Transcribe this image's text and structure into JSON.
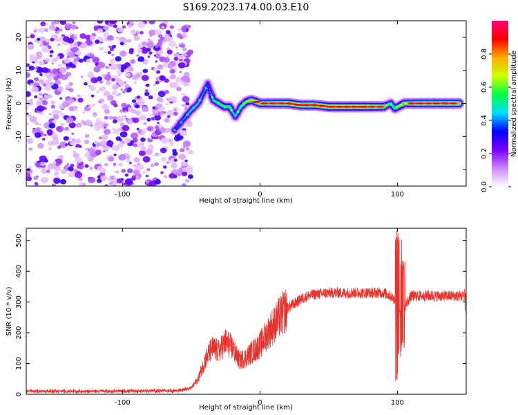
{
  "title": "S169.2023.174.00.03.E10",
  "chart_data": [
    {
      "type": "heatmap",
      "xlabel": "Height of straight line (km)",
      "ylabel": "Frequency (Hz)",
      "xlim": [
        -170,
        150
      ],
      "ylim": [
        -25,
        25
      ],
      "xticks": [
        -100,
        0,
        100
      ],
      "yticks": [
        -20,
        -10,
        0,
        10,
        20
      ],
      "colorbar": {
        "label": "Normalized spectral amplitude",
        "range": [
          0,
          1
        ],
        "ticks": [
          0.0,
          0.2,
          0.4,
          0.6,
          0.8
        ],
        "colors": [
          "#ffffff",
          "#cc88ff",
          "#7a00ff",
          "#0000ff",
          "#00ddff",
          "#00ff44",
          "#ccff00",
          "#ffaa00",
          "#ff0000",
          "#ff0077"
        ]
      },
      "noise_region": {
        "x_from": -170,
        "x_to": -50,
        "amplitude": 0.2
      },
      "ridge": [
        {
          "x": -62,
          "y": -8,
          "a": 0.35
        },
        {
          "x": -56,
          "y": -5,
          "a": 0.4
        },
        {
          "x": -50,
          "y": -2,
          "a": 0.45
        },
        {
          "x": -45,
          "y": 0,
          "a": 0.45
        },
        {
          "x": -40,
          "y": 4,
          "a": 0.4
        },
        {
          "x": -38,
          "y": 6,
          "a": 0.35
        },
        {
          "x": -34,
          "y": 1,
          "a": 0.5
        },
        {
          "x": -30,
          "y": 0,
          "a": 0.55
        },
        {
          "x": -26,
          "y": -1,
          "a": 0.55
        },
        {
          "x": -22,
          "y": -1,
          "a": 0.55
        },
        {
          "x": -18,
          "y": -4,
          "a": 0.45
        },
        {
          "x": -14,
          "y": -1,
          "a": 0.55
        },
        {
          "x": -10,
          "y": 0.5,
          "a": 0.6
        },
        {
          "x": -6,
          "y": 1,
          "a": 0.7
        },
        {
          "x": 0,
          "y": 0,
          "a": 0.75
        },
        {
          "x": 10,
          "y": 0,
          "a": 0.8
        },
        {
          "x": 20,
          "y": 0,
          "a": 0.85
        },
        {
          "x": 30,
          "y": -0.5,
          "a": 0.85
        },
        {
          "x": 40,
          "y": -0.5,
          "a": 0.85
        },
        {
          "x": 50,
          "y": -1,
          "a": 0.85
        },
        {
          "x": 60,
          "y": -1,
          "a": 0.85
        },
        {
          "x": 70,
          "y": -1,
          "a": 0.85
        },
        {
          "x": 80,
          "y": -1,
          "a": 0.8
        },
        {
          "x": 90,
          "y": -1,
          "a": 0.75
        },
        {
          "x": 95,
          "y": 0,
          "a": 0.5
        },
        {
          "x": 98,
          "y": -1.5,
          "a": 0.55
        },
        {
          "x": 105,
          "y": 0,
          "a": 0.7
        },
        {
          "x": 115,
          "y": 0,
          "a": 0.8
        },
        {
          "x": 125,
          "y": 0,
          "a": 0.8
        },
        {
          "x": 135,
          "y": 0,
          "a": 0.8
        },
        {
          "x": 145,
          "y": 0,
          "a": 0.8
        }
      ]
    },
    {
      "type": "line",
      "xlabel": "Height of straight line (km)",
      "ylabel": "SNR (10 * v/v)",
      "xlim": [
        -170,
        150
      ],
      "ylim": [
        0,
        540
      ],
      "xticks": [
        -100,
        0,
        100
      ],
      "yticks": [
        0,
        100,
        200,
        300,
        400,
        500
      ],
      "color": "#e8322e",
      "envelope_x": [
        -170,
        -150,
        -100,
        -60,
        -50,
        -45,
        -40,
        -35,
        -30,
        -25,
        -20,
        -15,
        -10,
        -5,
        0,
        5,
        10,
        15,
        20,
        25,
        30,
        35,
        40,
        50,
        60,
        70,
        80,
        90,
        95,
        100,
        103,
        106,
        110,
        120,
        130,
        140,
        150
      ],
      "envelope_y": [
        10,
        10,
        10,
        12,
        20,
        50,
        110,
        150,
        140,
        170,
        150,
        110,
        120,
        140,
        160,
        195,
        225,
        255,
        280,
        295,
        310,
        320,
        325,
        330,
        330,
        330,
        330,
        330,
        320,
        300,
        250,
        290,
        320,
        320,
        320,
        320,
        320
      ],
      "spikes": [
        {
          "x": 100,
          "y_max": 535,
          "y_min": 40
        },
        {
          "x": 102,
          "y_max": 520,
          "y_min": 120
        },
        {
          "x": 104,
          "y_max": 450,
          "y_min": 150
        },
        {
          "x": 150,
          "y_max": 350,
          "y_min": 260
        }
      ]
    }
  ]
}
